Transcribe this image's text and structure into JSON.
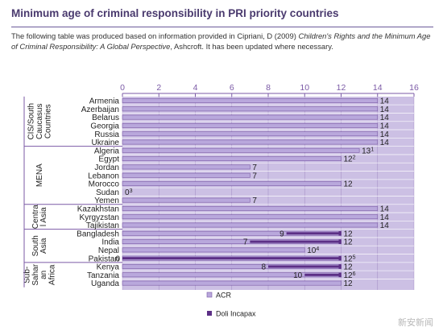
{
  "page": {
    "title": "Minimum age of criminal responsibility in PRI priority countries",
    "intro_a": "The following table was produced based on information provided in Cipriani, D (2009) ",
    "intro_b": "Children's Rights and the Minimum Age of Criminal Responsibility: A Global Perspective",
    "intro_c": ", Ashcroft. It has been updated where necessary.",
    "watermark": "新安新闻"
  },
  "chart_data": {
    "type": "bar",
    "orientation": "horizontal",
    "title": "",
    "xlim": [
      0,
      16
    ],
    "xticks": [
      0,
      2,
      4,
      6,
      8,
      10,
      12,
      14,
      16
    ],
    "grid": true,
    "legend_position": "bottom-right",
    "colors": {
      "ACR": "#b9a8dc",
      "Doli Incapax": "#5c2f86",
      "background": "#ccc0e4",
      "axis": "#7b5aa6",
      "text": "#222222"
    },
    "series": [
      {
        "name": "ACR"
      },
      {
        "name": "Doli Incapax"
      }
    ],
    "groups": [
      {
        "label": "CIS/South Caucasus Countries",
        "lines": [
          "CIS/South",
          "Caucasus",
          "Countries"
        ]
      },
      {
        "label": "MENA",
        "lines": [
          "MENA"
        ]
      },
      {
        "label": "Central Asia",
        "lines": [
          "Centra",
          "l Asia"
        ]
      },
      {
        "label": "South Asia",
        "lines": [
          "South",
          "Asia"
        ]
      },
      {
        "label": "Sub-Saharan Africa",
        "lines": [
          "Sub-",
          "Sahar",
          "an",
          "Africa"
        ]
      }
    ],
    "rows": [
      {
        "group": 0,
        "country": "Armenia",
        "acr": 14,
        "label": "14",
        "sup": ""
      },
      {
        "group": 0,
        "country": "Azerbaijan",
        "acr": 14,
        "label": "14",
        "sup": ""
      },
      {
        "group": 0,
        "country": "Belarus",
        "acr": 14,
        "label": "14",
        "sup": ""
      },
      {
        "group": 0,
        "country": "Georgia",
        "acr": 14,
        "label": "14",
        "sup": ""
      },
      {
        "group": 0,
        "country": "Russia",
        "acr": 14,
        "label": "14",
        "sup": ""
      },
      {
        "group": 0,
        "country": "Ukraine",
        "acr": 14,
        "label": "14",
        "sup": ""
      },
      {
        "group": 1,
        "country": "Algeria",
        "acr": 13,
        "label": "13",
        "sup": "1"
      },
      {
        "group": 1,
        "country": "Egypt",
        "acr": 12,
        "label": "12",
        "sup": "2"
      },
      {
        "group": 1,
        "country": "Jordan",
        "acr": 7,
        "label": "7",
        "sup": ""
      },
      {
        "group": 1,
        "country": "Lebanon",
        "acr": 7,
        "label": "7",
        "sup": ""
      },
      {
        "group": 1,
        "country": "Morocco",
        "acr": 12,
        "label": "12",
        "sup": ""
      },
      {
        "group": 1,
        "country": "Sudan",
        "acr": 0,
        "label": "0",
        "sup": "3"
      },
      {
        "group": 1,
        "country": "Yemen",
        "acr": 7,
        "label": "7",
        "sup": ""
      },
      {
        "group": 2,
        "country": "Kazakhstan",
        "acr": 14,
        "label": "14",
        "sup": ""
      },
      {
        "group": 2,
        "country": "Kyrgyzstan",
        "acr": 14,
        "label": "14",
        "sup": ""
      },
      {
        "group": 2,
        "country": "Tajikistan",
        "acr": 14,
        "label": "14",
        "sup": ""
      },
      {
        "group": 3,
        "country": "Bangladesh",
        "acr": 12,
        "label": "12",
        "sup": "",
        "doli": [
          9,
          12
        ],
        "doli_label": "9"
      },
      {
        "group": 3,
        "country": "India",
        "acr": 12,
        "label": "12",
        "sup": "",
        "doli": [
          7,
          12
        ],
        "doli_label": "7"
      },
      {
        "group": 3,
        "country": "Nepal",
        "acr": 10,
        "label": "10",
        "sup": "4"
      },
      {
        "group": 3,
        "country": "Pakistan",
        "acr": 12,
        "label": "12",
        "sup": "5",
        "doli": [
          0,
          12
        ],
        "doli_label": "0"
      },
      {
        "group": 4,
        "country": "Kenya",
        "acr": 12,
        "label": "12",
        "sup": "",
        "doli": [
          8,
          12
        ],
        "doli_label": "8"
      },
      {
        "group": 4,
        "country": "Tanzania",
        "acr": 12,
        "label": "12",
        "sup": "6",
        "doli": [
          10,
          12
        ],
        "doli_label": "10"
      },
      {
        "group": 4,
        "country": "Uganda",
        "acr": 12,
        "label": "12",
        "sup": ""
      }
    ],
    "legend": [
      {
        "label": "ACR",
        "color": "#b9a8dc"
      },
      {
        "label": "Doli Incapax",
        "color": "#5c2f86"
      }
    ]
  }
}
